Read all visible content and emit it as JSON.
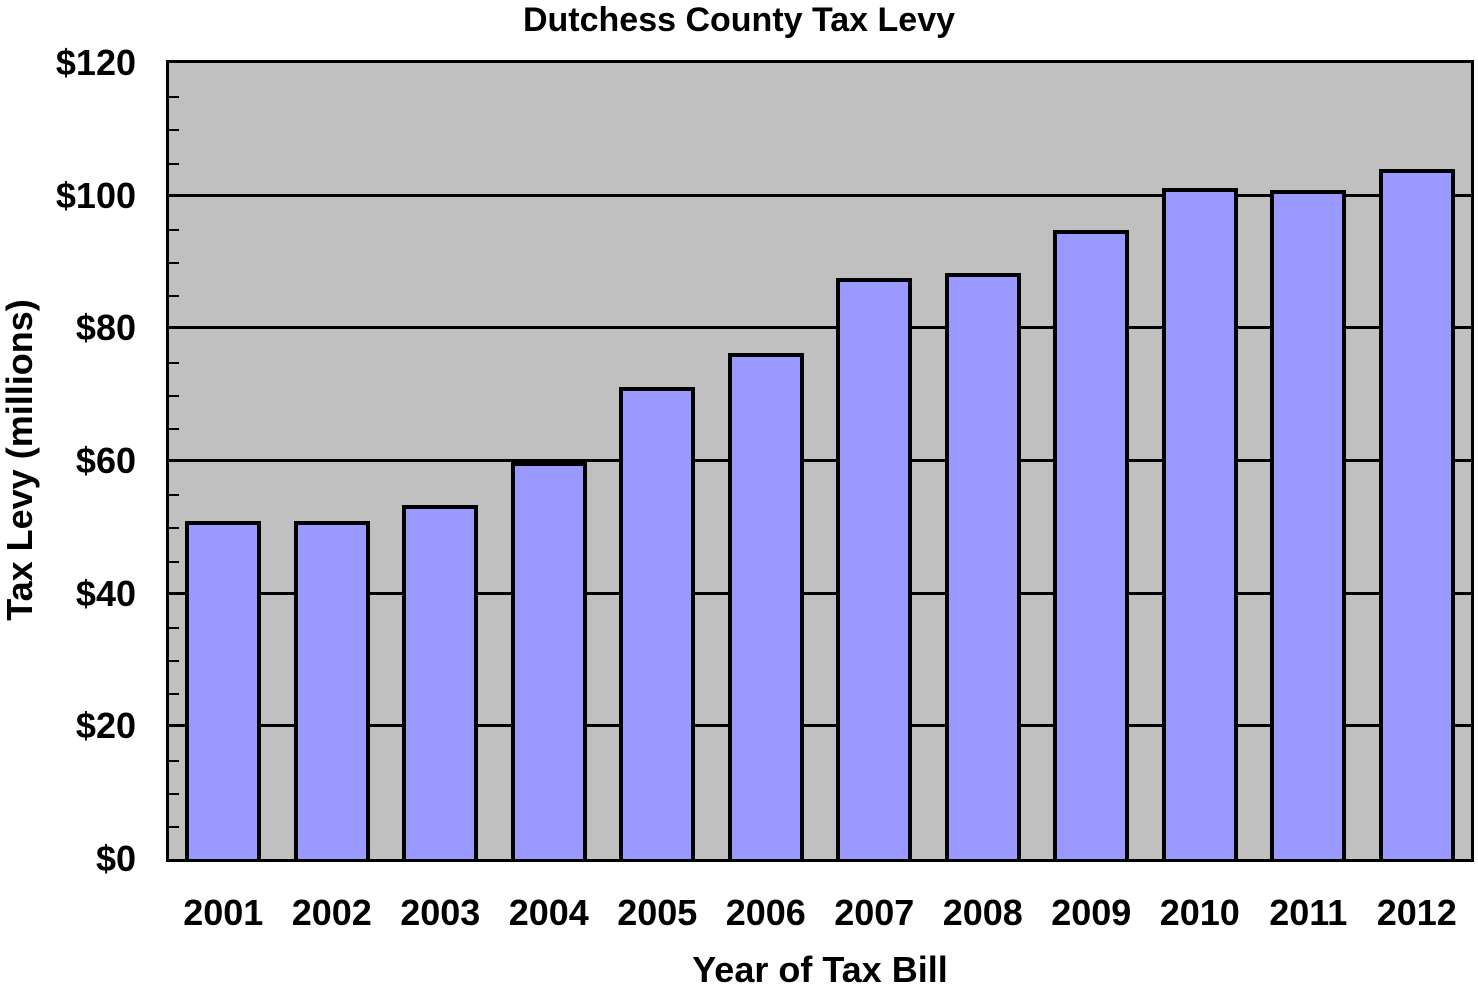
{
  "chart_data": {
    "type": "bar",
    "title": "Dutchess County Tax Levy",
    "xlabel": "Year of Tax Bill",
    "ylabel": "Tax Levy (millions)",
    "categories": [
      "2001",
      "2002",
      "2003",
      "2004",
      "2005",
      "2006",
      "2007",
      "2008",
      "2009",
      "2010",
      "2011",
      "2012"
    ],
    "values": [
      50.9,
      50.9,
      53.3,
      59.8,
      71.2,
      76.3,
      87.6,
      88.4,
      94.8,
      101.1,
      100.8,
      104.0
    ],
    "ylim": [
      0,
      120
    ],
    "yticks": [
      "$0",
      "$20",
      "$40",
      "$60",
      "$80",
      "$100",
      "$120"
    ],
    "grid": true,
    "legend": null,
    "colors": {
      "bar_fill": "#9999ff",
      "bar_border": "#000000",
      "plot_bg": "#c0c0c0"
    }
  }
}
